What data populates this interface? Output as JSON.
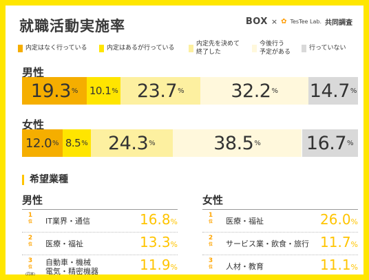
{
  "title": "就職活動実施率",
  "brand": {
    "logo": "BOX",
    "sep": "×",
    "lab": "TesTee Lab.",
    "joint": "共同調査"
  },
  "legend": [
    {
      "label": "内定はなく行っている",
      "color": "#f5ae00"
    },
    {
      "label": "内定はあるが行っている",
      "color": "#ffe500"
    },
    {
      "label": "内定先を決めて\n終了した",
      "color": "#fdf0a0"
    },
    {
      "label": "今後行う\n予定がある",
      "color": "#fff8dc"
    },
    {
      "label": "行っていない",
      "color": "#d9d9d9"
    }
  ],
  "chart_data": {
    "type": "bar",
    "stacked": true,
    "orientation": "horizontal",
    "unit": "%",
    "series_names": [
      "内定はなく行っている",
      "内定はあるが行っている",
      "内定先を決めて終了した",
      "今後行う予定がある",
      "行っていない"
    ],
    "colors": [
      "#f5ae00",
      "#ffe500",
      "#fdf0a0",
      "#fff8dc",
      "#d9d9d9"
    ],
    "rows": [
      {
        "label": "男性",
        "values": [
          19.3,
          10.1,
          23.7,
          32.2,
          14.7
        ],
        "labels": [
          "19.3",
          "10.1",
          "23.7",
          "32.2",
          "14.7"
        ]
      },
      {
        "label": "女性",
        "values": [
          12.0,
          8.5,
          24.3,
          38.5,
          16.7
        ],
        "labels": [
          "12.0",
          "8.5",
          "24.3",
          "38.5",
          "16.7"
        ]
      }
    ]
  },
  "ranking": {
    "heading": "希望業種",
    "rank_suffix": "位",
    "tie_label": "(同率)",
    "columns": [
      {
        "gender": "男性",
        "items": [
          {
            "rank": "1",
            "name": "IT業界・通信",
            "value": "16.8",
            "tie": false
          },
          {
            "rank": "2",
            "name": "医療・福祉",
            "value": "13.3",
            "tie": false
          },
          {
            "rank": "3",
            "name": "自動車・機械\n電気・精密機器",
            "value": "11.9",
            "tie": true
          }
        ]
      },
      {
        "gender": "女性",
        "items": [
          {
            "rank": "1",
            "name": "医療・福祉",
            "value": "26.0",
            "tie": false
          },
          {
            "rank": "2",
            "name": "サービス業・飲食・旅行",
            "value": "11.7",
            "tie": false
          },
          {
            "rank": "3",
            "name": "人材・教育",
            "value": "11.1",
            "tie": false
          }
        ]
      }
    ],
    "pct": "%"
  }
}
